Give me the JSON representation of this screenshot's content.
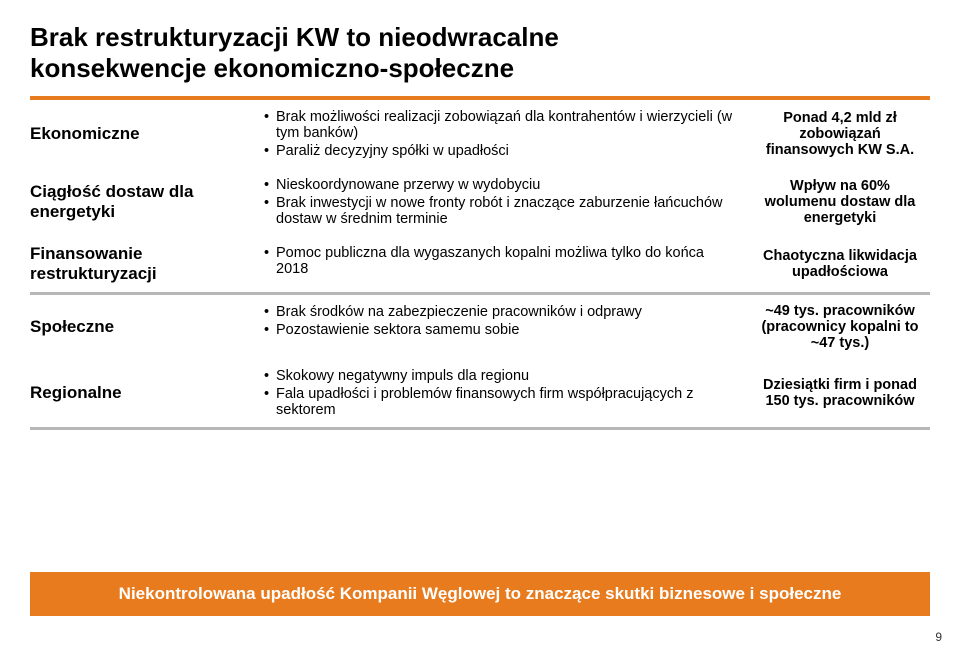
{
  "title_line1": "Brak restrukturyzacji KW to nieodwracalne",
  "title_line2": "konsekwencje ekonomiczno-społeczne",
  "colors": {
    "orange": "#e87b1e",
    "gray": "#b7b7b7",
    "text": "#000000",
    "white": "#ffffff"
  },
  "rows": {
    "r1": {
      "left": "Ekonomiczne",
      "bullets": [
        "Brak możliwości realizacji zobowiązań dla kontrahentów i wierzycieli (w tym banków)",
        "Paraliż decyzyjny spółki w upadłości"
      ],
      "right": "Ponad 4,2 mld zł zobowiązań finansowych KW S.A."
    },
    "r2": {
      "left": "Ciągłość dostaw dla energetyki",
      "bullets": [
        "Nieskoordynowane przerwy w wydobyciu",
        "Brak inwestycji w nowe fronty robót i znaczące zaburzenie łańcuchów dostaw w średnim terminie"
      ],
      "right": "Wpływ na 60% wolumenu dostaw dla energetyki"
    },
    "r3": {
      "left": "Finansowanie restrukturyzacji",
      "bullets": [
        "Pomoc publiczna dla wygaszanych kopalni możliwa tylko do końca 2018"
      ],
      "right": "Chaotyczna likwidacja upadłościowa"
    },
    "r4": {
      "left": "Społeczne",
      "bullets": [
        "Brak środków na zabezpieczenie pracowników i odprawy",
        "Pozostawienie sektora samemu sobie"
      ],
      "right": "~49 tys. pracowników (pracownicy kopalni to ~47 tys.)"
    },
    "r5": {
      "left": "Regionalne",
      "bullets": [
        "Skokowy negatywny impuls dla regionu",
        "Fala upadłości i problemów finansowych firm współpracujących z sektorem"
      ],
      "right": "Dziesiątki firm i ponad 150 tys. pracowników"
    }
  },
  "bottom_band": "Niekontrolowana upadłość Kompanii Węglowej to znaczące skutki biznesowe i społeczne",
  "page_number": "9"
}
